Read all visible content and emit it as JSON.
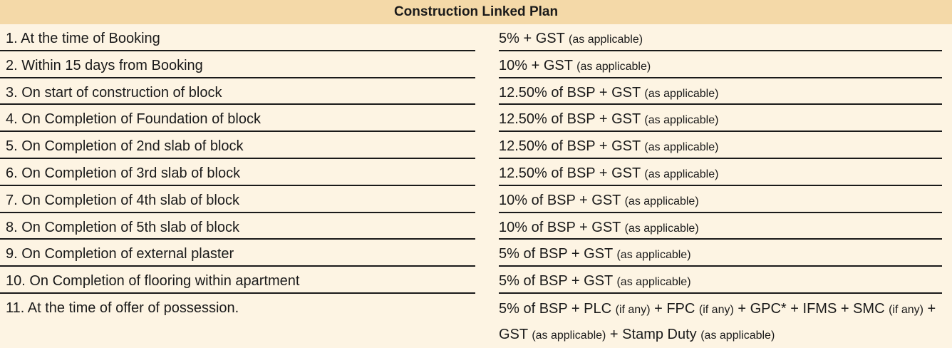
{
  "title": "Construction Linked Plan",
  "rows": [
    {
      "stage": "1. At the time of Booking",
      "amount": "5% + GST",
      "note": "(as applicable)"
    },
    {
      "stage": "2. Within 15 days from Booking",
      "amount": "10% + GST",
      "note": "(as applicable)"
    },
    {
      "stage": "3. On start of construction of block",
      "amount": "12.50% of BSP + GST",
      "note": "(as applicable)"
    },
    {
      "stage": "4. On Completion of Foundation of block",
      "amount": "12.50% of BSP + GST",
      "note": "(as applicable)"
    },
    {
      "stage": "5. On Completion of 2nd slab of block",
      "amount": "12.50% of BSP + GST",
      "note": "(as applicable)"
    },
    {
      "stage": "6. On Completion of 3rd slab of block",
      "amount": "12.50% of BSP + GST",
      "note": "(as applicable)"
    },
    {
      "stage": "7. On Completion of 4th slab of block",
      "amount": "10% of BSP + GST",
      "note": "(as applicable)"
    },
    {
      "stage": "8. On Completion of 5th slab of block",
      "amount": "10% of BSP + GST",
      "note": "(as applicable)"
    },
    {
      "stage": "9. On Completion of external plaster",
      "amount": "5% of BSP + GST",
      "note": "(as applicable)"
    },
    {
      "stage": "10. On Completion of flooring within apartment",
      "amount": "5% of BSP + GST",
      "note": "(as applicable)"
    }
  ],
  "last_row": {
    "stage": "11. At the time of offer of possession.",
    "parts": [
      "5% of BSP + PLC ",
      "(if any)",
      " + FPC ",
      "(if any)",
      " + GPC* + IFMS + SMC ",
      "(if any)",
      " + GST ",
      "(as applicable)",
      " + Stamp Duty ",
      "(as applicable)"
    ]
  }
}
